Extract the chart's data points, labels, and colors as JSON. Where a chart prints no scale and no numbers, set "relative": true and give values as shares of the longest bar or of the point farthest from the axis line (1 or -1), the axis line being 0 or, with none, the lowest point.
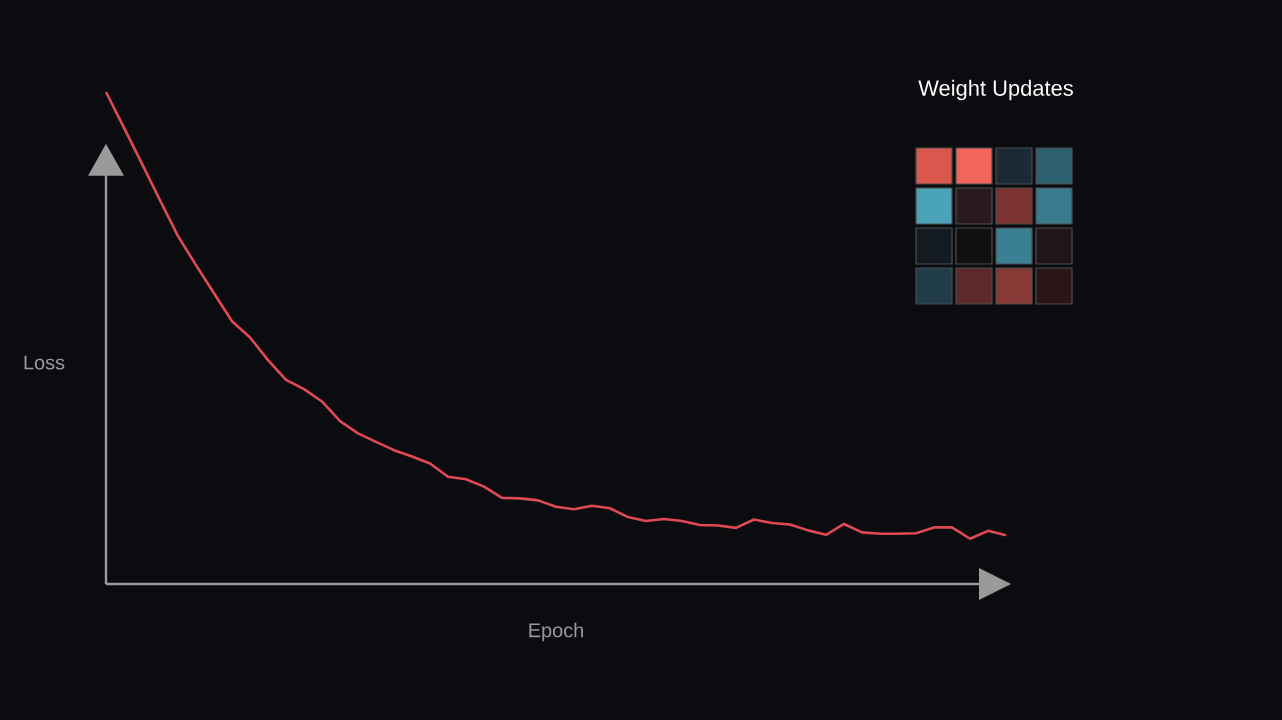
{
  "chart_data": {
    "type": "line",
    "relative": true,
    "xlabel": "Epoch",
    "ylabel": "Loss",
    "color": "#e04a55",
    "annotations": [
      "Weight Updates"
    ],
    "categories": [
      null,
      null,
      null,
      null,
      null,
      null,
      null,
      null,
      null,
      null,
      null,
      null,
      null,
      null,
      null,
      null,
      null,
      null,
      null,
      null,
      null,
      null,
      null,
      null,
      null,
      null,
      null,
      null,
      null,
      null,
      null,
      null,
      null,
      null,
      null,
      null,
      null,
      null,
      null,
      null,
      null,
      null,
      null,
      null,
      null,
      null,
      null,
      null,
      null,
      null,
      null
    ],
    "values": [
      1.0,
      0.927,
      0.854,
      0.78,
      0.707,
      0.648,
      0.591,
      0.534,
      0.501,
      0.455,
      0.415,
      0.396,
      0.371,
      0.331,
      0.306,
      0.289,
      0.272,
      0.259,
      0.245,
      0.218,
      0.213,
      0.198,
      0.175,
      0.174,
      0.17,
      0.157,
      0.152,
      0.159,
      0.154,
      0.136,
      0.128,
      0.132,
      0.128,
      0.12,
      0.119,
      0.114,
      0.131,
      0.124,
      0.121,
      0.109,
      0.1,
      0.122,
      0.105,
      0.102,
      0.102,
      0.103,
      0.115,
      0.115,
      0.092,
      0.108,
      0.099
    ]
  }
}
